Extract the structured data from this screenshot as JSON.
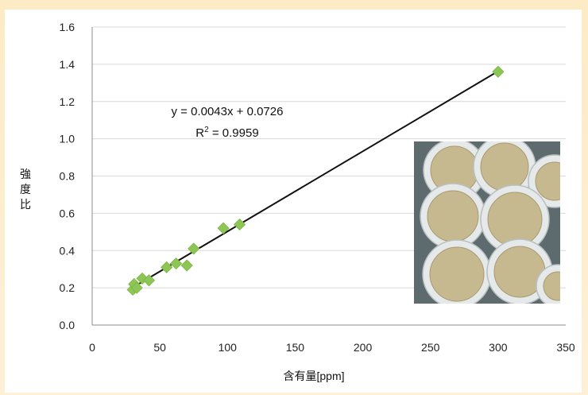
{
  "chart_data": {
    "type": "scatter",
    "title": "",
    "xlabel": "含有量[ppm]",
    "ylabel": "強度比",
    "xlim": [
      0,
      350
    ],
    "ylim": [
      0,
      1.6
    ],
    "x_ticks": [
      "0",
      "50",
      "100",
      "150",
      "200",
      "250",
      "300",
      "350"
    ],
    "y_ticks": [
      "0.0",
      "0.2",
      "0.4",
      "0.6",
      "0.8",
      "1.0",
      "1.2",
      "1.4",
      "1.6"
    ],
    "grid": "horizontal",
    "series": [
      {
        "marker_color": "#8ec655",
        "points": [
          {
            "x": 30,
            "y": 0.19
          },
          {
            "x": 31,
            "y": 0.22
          },
          {
            "x": 33,
            "y": 0.2
          },
          {
            "x": 37,
            "y": 0.25
          },
          {
            "x": 42,
            "y": 0.24
          },
          {
            "x": 55,
            "y": 0.31
          },
          {
            "x": 62,
            "y": 0.33
          },
          {
            "x": 70,
            "y": 0.32
          },
          {
            "x": 75,
            "y": 0.41
          },
          {
            "x": 97,
            "y": 0.52
          },
          {
            "x": 109,
            "y": 0.54
          },
          {
            "x": 300,
            "y": 1.36
          }
        ]
      }
    ],
    "trendline": {
      "slope": 0.0043,
      "intercept": 0.0726,
      "x_range": [
        30,
        300
      ],
      "color": "#111111",
      "equation": "y = 0.0043x + 0.0726",
      "r2_label": "R",
      "r2_sup": "2",
      "r2_value": " = 0.9959"
    },
    "inset_photo": {
      "kind": "photo of sample cups filled with powder",
      "colors": {
        "background": "#5d6a6e",
        "cup": "#e6e9e9",
        "powder": "#c7b98f"
      }
    }
  }
}
